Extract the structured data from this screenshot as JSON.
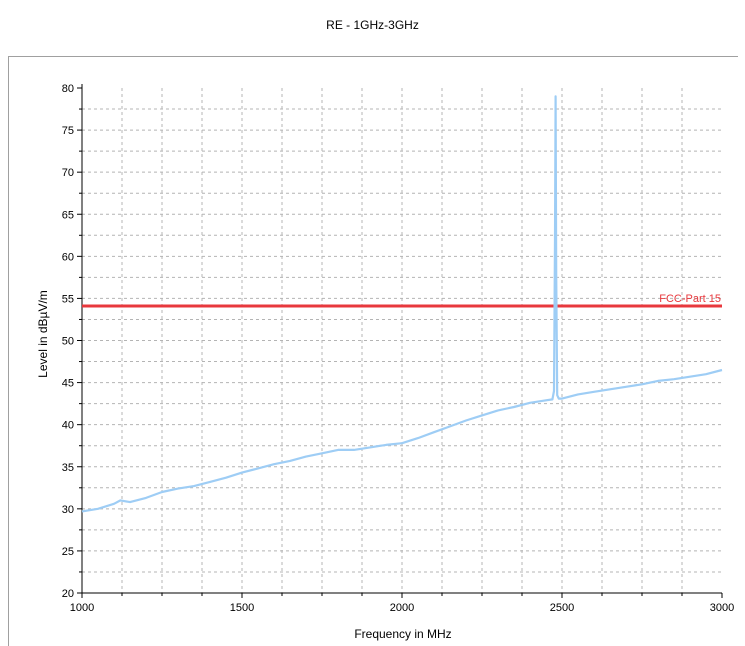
{
  "chart_data": {
    "type": "line",
    "title": "RE - 1GHz-3GHz",
    "xlabel": "Frequency in MHz",
    "ylabel": "Level in dBµV/m",
    "xlim": [
      1000,
      3000
    ],
    "ylim": [
      20,
      80
    ],
    "x_ticks": [
      1000,
      1500,
      2000,
      2500,
      3000
    ],
    "y_ticks": [
      20,
      25,
      30,
      35,
      40,
      45,
      50,
      55,
      60,
      65,
      70,
      75,
      80
    ],
    "grid": true,
    "limit_line": {
      "name": "FCC-Part 15",
      "value": 54.1,
      "color": "#e8383d"
    },
    "series": [
      {
        "color": "#9ecdf5",
        "x": [
          1000,
          1050,
          1100,
          1120,
          1150,
          1200,
          1250,
          1300,
          1350,
          1400,
          1450,
          1500,
          1550,
          1600,
          1650,
          1700,
          1750,
          1800,
          1850,
          1900,
          1950,
          2000,
          2050,
          2100,
          2150,
          2200,
          2250,
          2300,
          2350,
          2400,
          2450,
          2470,
          2475,
          2478,
          2480,
          2482,
          2485,
          2490,
          2500,
          2550,
          2600,
          2650,
          2700,
          2750,
          2800,
          2850,
          2900,
          2950,
          3000
        ],
        "values": [
          29.7,
          30.0,
          30.6,
          31.0,
          30.8,
          31.3,
          32.0,
          32.4,
          32.7,
          33.2,
          33.7,
          34.3,
          34.8,
          35.3,
          35.7,
          36.2,
          36.6,
          37.0,
          37.0,
          37.3,
          37.6,
          37.8,
          38.4,
          39.1,
          39.8,
          40.5,
          41.1,
          41.7,
          42.1,
          42.6,
          42.9,
          43.0,
          44.0,
          62.0,
          79.0,
          58.0,
          43.5,
          43.1,
          43.1,
          43.6,
          43.9,
          44.2,
          44.5,
          44.8,
          45.2,
          45.4,
          45.7,
          46.0,
          46.5
        ]
      }
    ]
  }
}
